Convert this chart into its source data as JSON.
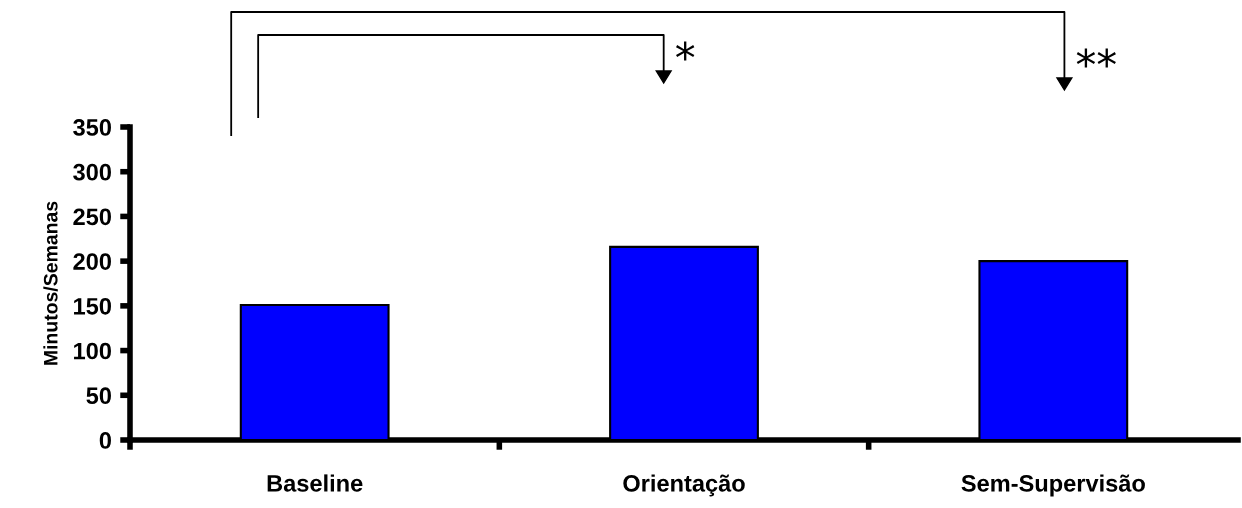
{
  "chart_data": {
    "type": "bar",
    "ylabel": "Minutos/Semanas",
    "categories": [
      "Baseline",
      "Orientação",
      "Sem-Supervisão"
    ],
    "values": [
      151,
      216,
      200
    ],
    "color": "#0000ff",
    "ylim": [
      0,
      350
    ],
    "yticks": [
      0,
      50,
      100,
      150,
      200,
      250,
      300,
      350
    ],
    "grid": false,
    "annotations": [
      "*",
      "**"
    ]
  }
}
